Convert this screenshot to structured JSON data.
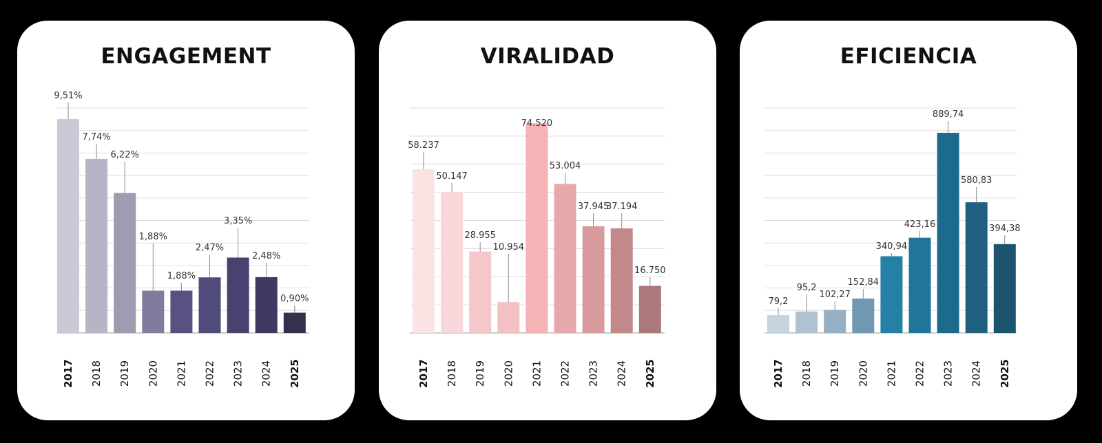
{
  "chart_data": [
    {
      "type": "bar",
      "title": "ENGAGEMENT",
      "categories": [
        "2017",
        "2018",
        "2019",
        "2020",
        "2021",
        "2022",
        "2023",
        "2024",
        "2025"
      ],
      "values": [
        9.51,
        7.74,
        6.22,
        1.88,
        1.88,
        2.47,
        3.35,
        2.48,
        0.9
      ],
      "value_labels": [
        "9,51%",
        "7,74%",
        "6,22%",
        "1,88%",
        "1,88%",
        "2,47%",
        "3,35%",
        "2,48%",
        "0,90%"
      ],
      "bold_categories": [
        "2017",
        "2025"
      ],
      "colors": [
        "#cbc9d6",
        "#b7b4c7",
        "#9f9bb1",
        "#807c9d",
        "#595181",
        "#504b7d",
        "#49416f",
        "#3f3963",
        "#36304f"
      ],
      "ylim": [
        0,
        10
      ],
      "grid": true
    },
    {
      "type": "bar",
      "title": "VIRALIDAD",
      "categories": [
        "2017",
        "2018",
        "2019",
        "2020",
        "2021",
        "2022",
        "2023",
        "2024",
        "2025"
      ],
      "values": [
        58237,
        50147,
        28955,
        10954,
        74520,
        53004,
        37945,
        37194,
        16750
      ],
      "value_labels": [
        "58.237",
        "50.147",
        "28.955",
        "10.954",
        "74.520",
        "53.004",
        "37.945",
        "37.194",
        "16.750"
      ],
      "bold_categories": [
        "2017",
        "2025"
      ],
      "colors": [
        "#fbe3e4",
        "#f8d6d9",
        "#f5c7ca",
        "#f3c0c3",
        "#f5b3b6",
        "#e6a8aa",
        "#d79b9d",
        "#c2888a",
        "#ab797b"
      ],
      "ylim": [
        0,
        80000
      ],
      "grid": true
    },
    {
      "type": "bar",
      "title": "EFICIENCIA",
      "categories": [
        "2017",
        "2018",
        "2019",
        "2020",
        "2021",
        "2022",
        "2023",
        "2024",
        "2025"
      ],
      "values": [
        79.2,
        95.2,
        102.27,
        152.84,
        340.94,
        423.16,
        889.74,
        580.83,
        394.38
      ],
      "value_labels": [
        "79,2",
        "95,2",
        "102,27",
        "152,84",
        "340,94",
        "423,16",
        "889,74",
        "580,83",
        "394,38"
      ],
      "bold_categories": [
        "2017",
        "2025"
      ],
      "colors": [
        "#c6d3dd",
        "#b0c2d1",
        "#97afc2",
        "#7198b1",
        "#2480a5",
        "#1f7699",
        "#1d6b8c",
        "#1f5f7f",
        "#1c5470"
      ],
      "ylim": [
        0,
        1000
      ],
      "grid": true
    }
  ]
}
